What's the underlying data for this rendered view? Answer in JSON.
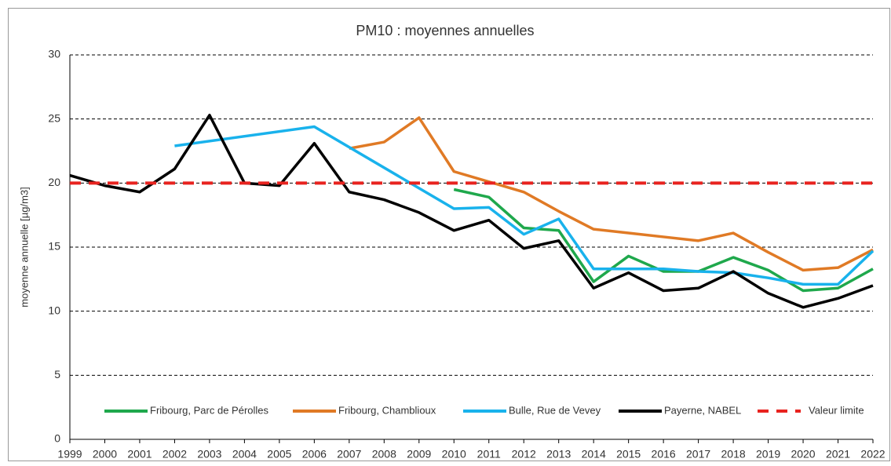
{
  "chart_data": {
    "type": "line",
    "title": "PM10 : moyennes annuelles",
    "y_label": "moyenne annuelle [µg/m3]",
    "xlim": [
      1999,
      2022
    ],
    "xticks": [
      1999,
      2000,
      2001,
      2002,
      2003,
      2004,
      2005,
      2006,
      2007,
      2008,
      2009,
      2010,
      2011,
      2012,
      2013,
      2014,
      2015,
      2016,
      2017,
      2018,
      2019,
      2020,
      2021,
      2022
    ],
    "ylim": [
      0,
      30
    ],
    "yticks": [
      0,
      5,
      10,
      15,
      20,
      25,
      30
    ],
    "grid": true,
    "legend": "bottom",
    "series": [
      {
        "name": "Fribourg, Parc de Pérolles",
        "color": "#1fa84c",
        "dash": false,
        "x": [
          2010,
          2011,
          2012,
          2013,
          2014,
          2015,
          2016,
          2017,
          2018,
          2019,
          2020,
          2021,
          2022
        ],
        "values": [
          19.5,
          18.9,
          16.5,
          16.3,
          12.3,
          14.3,
          13.1,
          13.1,
          14.2,
          13.2,
          11.6,
          11.8,
          13.3
        ]
      },
      {
        "name": "Fribourg, Chamblioux",
        "color": "#e07a25",
        "dash": false,
        "x": [
          2007,
          2008,
          2009,
          2010,
          2011,
          2012,
          2013,
          2014,
          2015,
          2016,
          2017,
          2018,
          2019,
          2020,
          2021,
          2022
        ],
        "values": [
          22.7,
          23.2,
          25.1,
          20.9,
          20.1,
          19.3,
          17.8,
          16.4,
          16.1,
          15.8,
          15.5,
          16.1,
          14.6,
          13.2,
          13.4,
          14.8
        ]
      },
      {
        "name": "Bulle, Rue de Vevey",
        "color": "#19b2ec",
        "dash": false,
        "x": [
          2002,
          2006,
          2010,
          2011,
          2012,
          2013,
          2014,
          2015,
          2016,
          2017,
          2018,
          2019,
          2020,
          2021,
          2022
        ],
        "values": [
          22.9,
          24.4,
          18.0,
          18.1,
          16.0,
          17.2,
          13.3,
          13.3,
          13.3,
          13.1,
          13.0,
          12.6,
          12.1,
          12.1,
          14.7
        ]
      },
      {
        "name": "Payerne, NABEL",
        "color": "#000000",
        "dash": false,
        "x": [
          1999,
          2000,
          2001,
          2002,
          2003,
          2004,
          2005,
          2006,
          2007,
          2008,
          2009,
          2010,
          2011,
          2012,
          2013,
          2014,
          2015,
          2016,
          2017,
          2018,
          2019,
          2020,
          2021,
          2022
        ],
        "values": [
          20.6,
          19.8,
          19.3,
          21.1,
          25.3,
          20.0,
          19.8,
          23.1,
          19.3,
          18.7,
          17.7,
          16.3,
          17.1,
          14.9,
          15.5,
          11.8,
          13.0,
          11.6,
          11.8,
          13.1,
          11.4,
          10.3,
          11.0,
          12.0
        ]
      },
      {
        "name": "Valeur limite",
        "color": "#e8231f",
        "dash": true,
        "x": [
          1999,
          2022
        ],
        "values": [
          20,
          20
        ]
      }
    ]
  }
}
